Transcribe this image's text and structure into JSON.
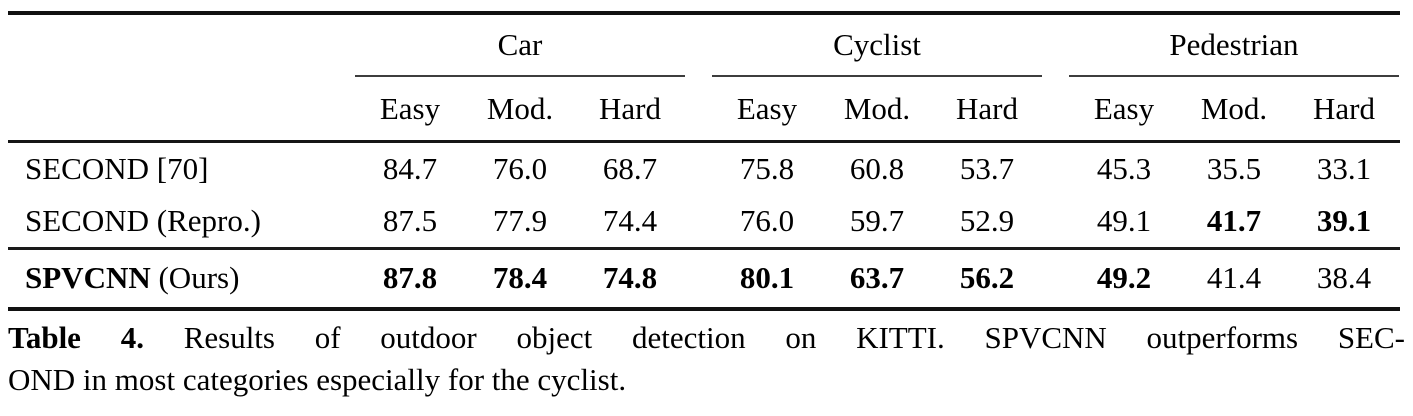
{
  "table": {
    "groups": [
      "Car",
      "Cyclist",
      "Pedestrian"
    ],
    "sub_headers": [
      "Easy",
      "Mod.",
      "Hard"
    ],
    "rows": [
      {
        "name_strong": "",
        "name_rest": "SECOND [70]",
        "values": [
          "84.7",
          "76.0",
          "68.7",
          "75.8",
          "60.8",
          "53.7",
          "45.3",
          "35.5",
          "33.1"
        ],
        "bold": [
          false,
          false,
          false,
          false,
          false,
          false,
          false,
          false,
          false
        ]
      },
      {
        "name_strong": "",
        "name_rest": "SECOND (Repro.)",
        "values": [
          "87.5",
          "77.9",
          "74.4",
          "76.0",
          "59.7",
          "52.9",
          "49.1",
          "41.7",
          "39.1"
        ],
        "bold": [
          false,
          false,
          false,
          false,
          false,
          false,
          false,
          true,
          true
        ]
      },
      {
        "name_strong": "SPVCNN",
        "name_rest": " (Ours)",
        "values": [
          "87.8",
          "78.4",
          "74.8",
          "80.1",
          "63.7",
          "56.2",
          "49.2",
          "41.4",
          "38.4"
        ],
        "bold": [
          true,
          true,
          true,
          true,
          true,
          true,
          true,
          false,
          false
        ]
      }
    ]
  },
  "caption": {
    "label": "Table 4.",
    "line1_rest": " Results of outdoor object detection on KITTI. SPVCNN outperforms SEC-",
    "line2": "OND in most categories especially for the cyclist."
  },
  "colors": {
    "text": "#000000",
    "rule": "#111111",
    "group_underline": "#3d3d3d",
    "background": "#ffffff"
  }
}
